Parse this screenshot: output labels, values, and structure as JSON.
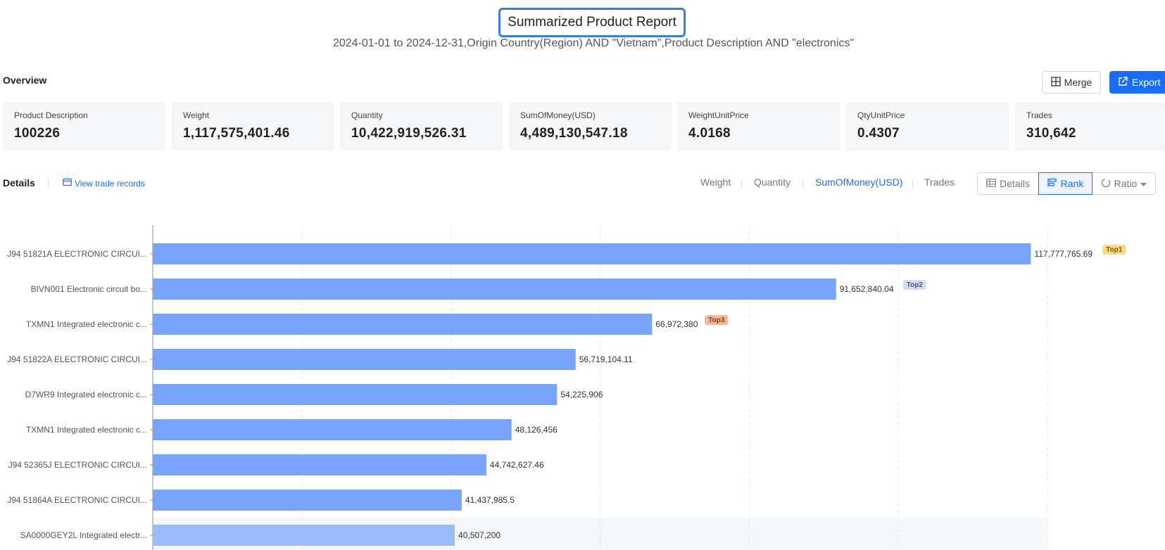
{
  "report": {
    "title": "Summarized Product Report",
    "subtitle": "2024-01-01 to 2024-12-31,Origin Country(Region) AND \"Vietnam\",Product Description AND \"electronics\""
  },
  "overview": {
    "label": "Overview",
    "merge_label": "Merge",
    "export_label": "Export",
    "stats": [
      {
        "label": "Product Description",
        "value": "100226"
      },
      {
        "label": "Weight",
        "value": "1,117,575,401.46"
      },
      {
        "label": "Quantity",
        "value": "10,422,919,526.31"
      },
      {
        "label": "SumOfMoney(USD)",
        "value": "4,489,130,547.18"
      },
      {
        "label": "WeightUnitPrice",
        "value": "4.0168"
      },
      {
        "label": "QtyUnitPrice",
        "value": "0.4307"
      },
      {
        "label": "Trades",
        "value": "310,642"
      }
    ]
  },
  "details": {
    "label": "Details",
    "view_records": "View trade records",
    "metric_tabs": [
      "Weight",
      "Quantity",
      "SumOfMoney(USD)",
      "Trades"
    ],
    "active_metric": "SumOfMoney(USD)",
    "view_buttons": {
      "details": "Details",
      "rank": "Rank",
      "ratio": "Ratio"
    }
  },
  "colors": {
    "accent": "#1a6df5",
    "bar": "#78a4fb",
    "bar_highlight": "#9bbcfb",
    "top1_badge": "#f8d98a",
    "top2_badge": "#d5dcf0",
    "top3_badge": "#f0b99a"
  },
  "chart_data": {
    "type": "bar",
    "orientation": "horizontal",
    "categories": [
      "J94 51821A  ELECTRONIC CIRCUI...",
      "BIVN001  Electronic circuit bo...",
      "TXMN1  Integrated electronic c...",
      "J94 51822A  ELECTRONIC CIRCUI...",
      "D7WR9  Integrated electronic c...",
      "TXMN1  Integrated electronic c...",
      "J94 52365J  ELECTRONIC CIRCUI...",
      "J94 51864A  ELECTRONIC CIRCUI...",
      "SA0000GEY2L  Integrated electr..."
    ],
    "values": [
      117777765.69,
      91652840.04,
      66972380,
      56719104.11,
      54225906,
      48126456,
      44742627.46,
      41437985.5,
      40507200
    ],
    "value_labels": [
      "117,777,765.69",
      "91,652,840.04",
      "66,972,380",
      "56,719,104.11",
      "54,225,906",
      "48,126,456",
      "44,742,627.46",
      "41,437,985.5",
      "40,507,200"
    ],
    "badges": [
      "Top1",
      "Top2",
      "Top3"
    ],
    "xlim": [
      0,
      120000000
    ],
    "grid": true,
    "highlighted_index": 8
  }
}
